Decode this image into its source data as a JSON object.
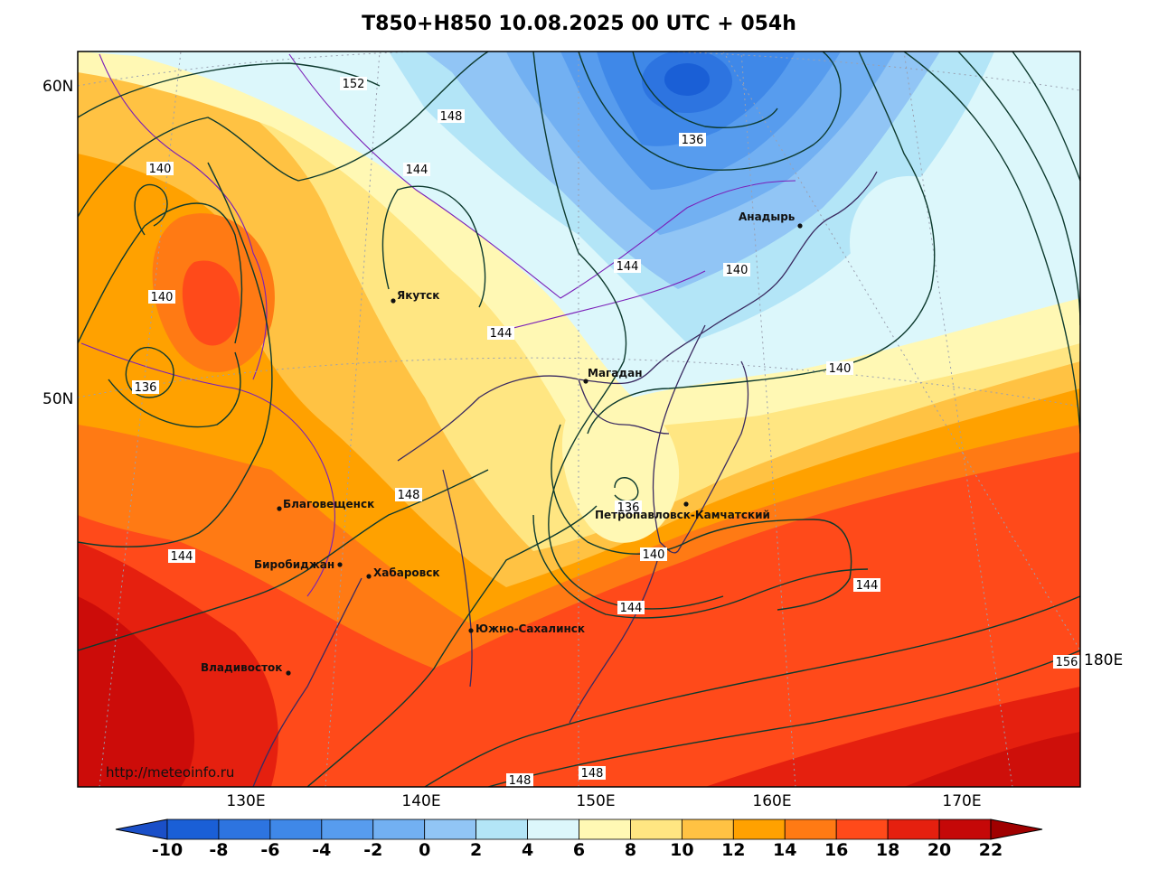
{
  "title": "T850+H850 10.08.2025 00 UTC + 054h",
  "watermark": "http://meteoinfo.ru",
  "lat_labels": [
    "60N",
    "50N"
  ],
  "lon_labels": [
    "130E",
    "140E",
    "150E",
    "160E",
    "170E",
    "180E"
  ],
  "cities": [
    {
      "name": "Якутск"
    },
    {
      "name": "Магадан"
    },
    {
      "name": "Анадырь"
    },
    {
      "name": "Благовещенск"
    },
    {
      "name": "Биробиджан"
    },
    {
      "name": "Хабаровск"
    },
    {
      "name": "Южно-Сахалинск"
    },
    {
      "name": "Владивосток"
    },
    {
      "name": "Петропавловск-Камчатский"
    }
  ],
  "contour_labels": [
    "152",
    "148",
    "144",
    "140",
    "136",
    "144",
    "140",
    "144",
    "136",
    "140",
    "148",
    "144",
    "136",
    "140",
    "144",
    "144",
    "156",
    "148",
    "148",
    "140"
  ],
  "colorbar": {
    "ticks": [
      "-10",
      "-8",
      "-6",
      "-4",
      "-2",
      "0",
      "2",
      "4",
      "6",
      "8",
      "10",
      "12",
      "14",
      "16",
      "18",
      "20",
      "22"
    ],
    "colors": [
      "#1a5fd6",
      "#2d74e0",
      "#3f88e8",
      "#579cee",
      "#72b0f2",
      "#91c5f5",
      "#b3e5f7",
      "#dcf7fb",
      "#fff8b4",
      "#ffe682",
      "#ffc243",
      "#ffa100",
      "#ff7a14",
      "#ff4a1a",
      "#e5200f",
      "#c50808"
    ],
    "low_color": "#1a4fc8",
    "high_color": "#a00000"
  }
}
